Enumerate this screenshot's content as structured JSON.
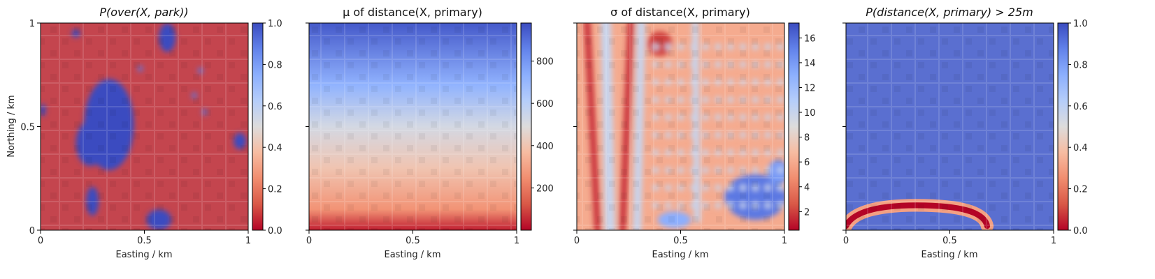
{
  "chart_data": [
    {
      "type": "heatmap",
      "title": "P(over(X, park))",
      "xlabel": "Easting / km",
      "ylabel": "Northing / km",
      "xlim": [
        0,
        1
      ],
      "ylim": [
        0,
        1
      ],
      "xticks": [
        "0",
        "0.5",
        "1"
      ],
      "yticks": [
        "0",
        "0.5",
        "1"
      ],
      "colorbar": {
        "min": 0.0,
        "max": 1.0,
        "ticks": [
          "0.0",
          "0.2",
          "0.4",
          "0.6",
          "0.8",
          "1.0"
        ],
        "colormap": "coolwarm_r"
      },
      "background_color": "#c4454e",
      "features": [
        {
          "kind": "blob",
          "value": 1.0,
          "cx": 0.33,
          "cy": 0.51,
          "rx": 0.12,
          "ry": 0.22
        },
        {
          "kind": "blob",
          "value": 1.0,
          "cx": 0.24,
          "cy": 0.42,
          "rx": 0.07,
          "ry": 0.11
        },
        {
          "kind": "blob",
          "value": 1.0,
          "cx": 0.25,
          "cy": 0.14,
          "rx": 0.03,
          "ry": 0.07
        },
        {
          "kind": "blob",
          "value": 1.0,
          "cx": 0.57,
          "cy": 0.05,
          "rx": 0.06,
          "ry": 0.05
        },
        {
          "kind": "blob",
          "value": 1.0,
          "cx": 0.61,
          "cy": 0.93,
          "rx": 0.04,
          "ry": 0.07
        },
        {
          "kind": "blob",
          "value": 1.0,
          "cx": 0.17,
          "cy": 0.95,
          "rx": 0.02,
          "ry": 0.02
        },
        {
          "kind": "blob",
          "value": 1.0,
          "cx": 0.96,
          "cy": 0.43,
          "rx": 0.03,
          "ry": 0.04
        },
        {
          "kind": "blob",
          "value": 1.0,
          "cx": 0.01,
          "cy": 0.58,
          "rx": 0.015,
          "ry": 0.03
        },
        {
          "kind": "blob",
          "value": 0.9,
          "cx": 0.48,
          "cy": 0.78,
          "rx": 0.012,
          "ry": 0.015
        },
        {
          "kind": "blob",
          "value": 0.9,
          "cx": 0.77,
          "cy": 0.77,
          "rx": 0.012,
          "ry": 0.015
        },
        {
          "kind": "blob",
          "value": 0.9,
          "cx": 0.74,
          "cy": 0.65,
          "rx": 0.012,
          "ry": 0.015
        },
        {
          "kind": "blob",
          "value": 0.9,
          "cx": 0.79,
          "cy": 0.57,
          "rx": 0.012,
          "ry": 0.015
        }
      ]
    },
    {
      "type": "heatmap",
      "title": "μ of distance(X, primary)",
      "xlabel": "Easting / km",
      "ylabel": "",
      "xlim": [
        0,
        1
      ],
      "ylim": [
        0,
        1
      ],
      "xticks": [
        "0",
        "0.5",
        "1"
      ],
      "yticks": [],
      "colorbar": {
        "min": 0,
        "max": 980,
        "ticks": [
          "200",
          "400",
          "600",
          "800"
        ],
        "colormap": "coolwarm_r"
      },
      "gradient": [
        {
          "y": 0.0,
          "value": 40
        },
        {
          "y": 0.1,
          "value": 260
        },
        {
          "y": 0.3,
          "value": 400
        },
        {
          "y": 0.5,
          "value": 520
        },
        {
          "y": 0.7,
          "value": 720
        },
        {
          "y": 1.0,
          "value": 950
        }
      ]
    },
    {
      "type": "heatmap",
      "title": "σ of distance(X, primary)",
      "xlabel": "Easting / km",
      "ylabel": "",
      "xlim": [
        0,
        1
      ],
      "ylim": [
        0,
        1
      ],
      "xticks": [
        "0",
        "0.5",
        "1"
      ],
      "yticks": [],
      "colorbar": {
        "min": 0.5,
        "max": 17.2,
        "ticks": [
          "2",
          "4",
          "6",
          "8",
          "10",
          "12",
          "14",
          "16"
        ],
        "colormap": "coolwarm_r"
      },
      "base_value": 6.0,
      "features": [
        {
          "kind": "band",
          "value": 1.5,
          "x0": 0.05,
          "y0": 1.0,
          "x1": 0.1,
          "y1": 0.0,
          "width": 0.03
        },
        {
          "kind": "band",
          "value": 1.5,
          "x0": 0.26,
          "y0": 1.0,
          "x1": 0.22,
          "y1": 0.0,
          "width": 0.03
        },
        {
          "kind": "band",
          "value": 10.0,
          "x0": 0.14,
          "y0": 1.0,
          "x1": 0.16,
          "y1": 0.0,
          "width": 0.05
        },
        {
          "kind": "band",
          "value": 10.0,
          "x0": 0.31,
          "y0": 1.0,
          "x1": 0.29,
          "y1": 0.0,
          "width": 0.04
        },
        {
          "kind": "band",
          "value": 10.0,
          "x0": 0.57,
          "y0": 1.0,
          "x1": 0.58,
          "y1": 0.05,
          "width": 0.03
        },
        {
          "kind": "blob",
          "value": 15.5,
          "cx": 0.86,
          "cy": 0.16,
          "rx": 0.15,
          "ry": 0.11
        },
        {
          "kind": "blob",
          "value": 14.0,
          "cx": 0.97,
          "cy": 0.28,
          "rx": 0.05,
          "ry": 0.06
        },
        {
          "kind": "blob",
          "value": 13.0,
          "cx": 0.47,
          "cy": 0.05,
          "rx": 0.08,
          "ry": 0.04
        },
        {
          "kind": "blob",
          "value": 2.0,
          "cx": 0.4,
          "cy": 0.9,
          "rx": 0.06,
          "ry": 0.06
        }
      ],
      "dot_grid": {
        "value": 10.0,
        "x_start": 0.38,
        "x_end": 0.98,
        "x_step": 0.06,
        "y_start": 0.12,
        "y_end": 0.95,
        "y_step": 0.085
      }
    },
    {
      "type": "heatmap",
      "title": "P(distance(X, primary) > 25m",
      "xlabel": "Easting / km",
      "ylabel": "",
      "xlim": [
        0,
        1
      ],
      "ylim": [
        0,
        1
      ],
      "xticks": [
        "0",
        "0.5",
        "1"
      ],
      "yticks": [],
      "colorbar": {
        "min": 0.0,
        "max": 1.0,
        "ticks": [
          "0.0",
          "0.2",
          "0.4",
          "0.6",
          "0.8",
          "1.0"
        ],
        "colormap": "coolwarm_r"
      },
      "background_color": "#5a6fd0",
      "features": [
        {
          "kind": "arc",
          "value": 0.0,
          "x0": 0.0,
          "y0": 0.02,
          "x1": 0.68,
          "y1": 0.02,
          "peak_y": 0.12,
          "width": 0.028
        }
      ]
    }
  ]
}
